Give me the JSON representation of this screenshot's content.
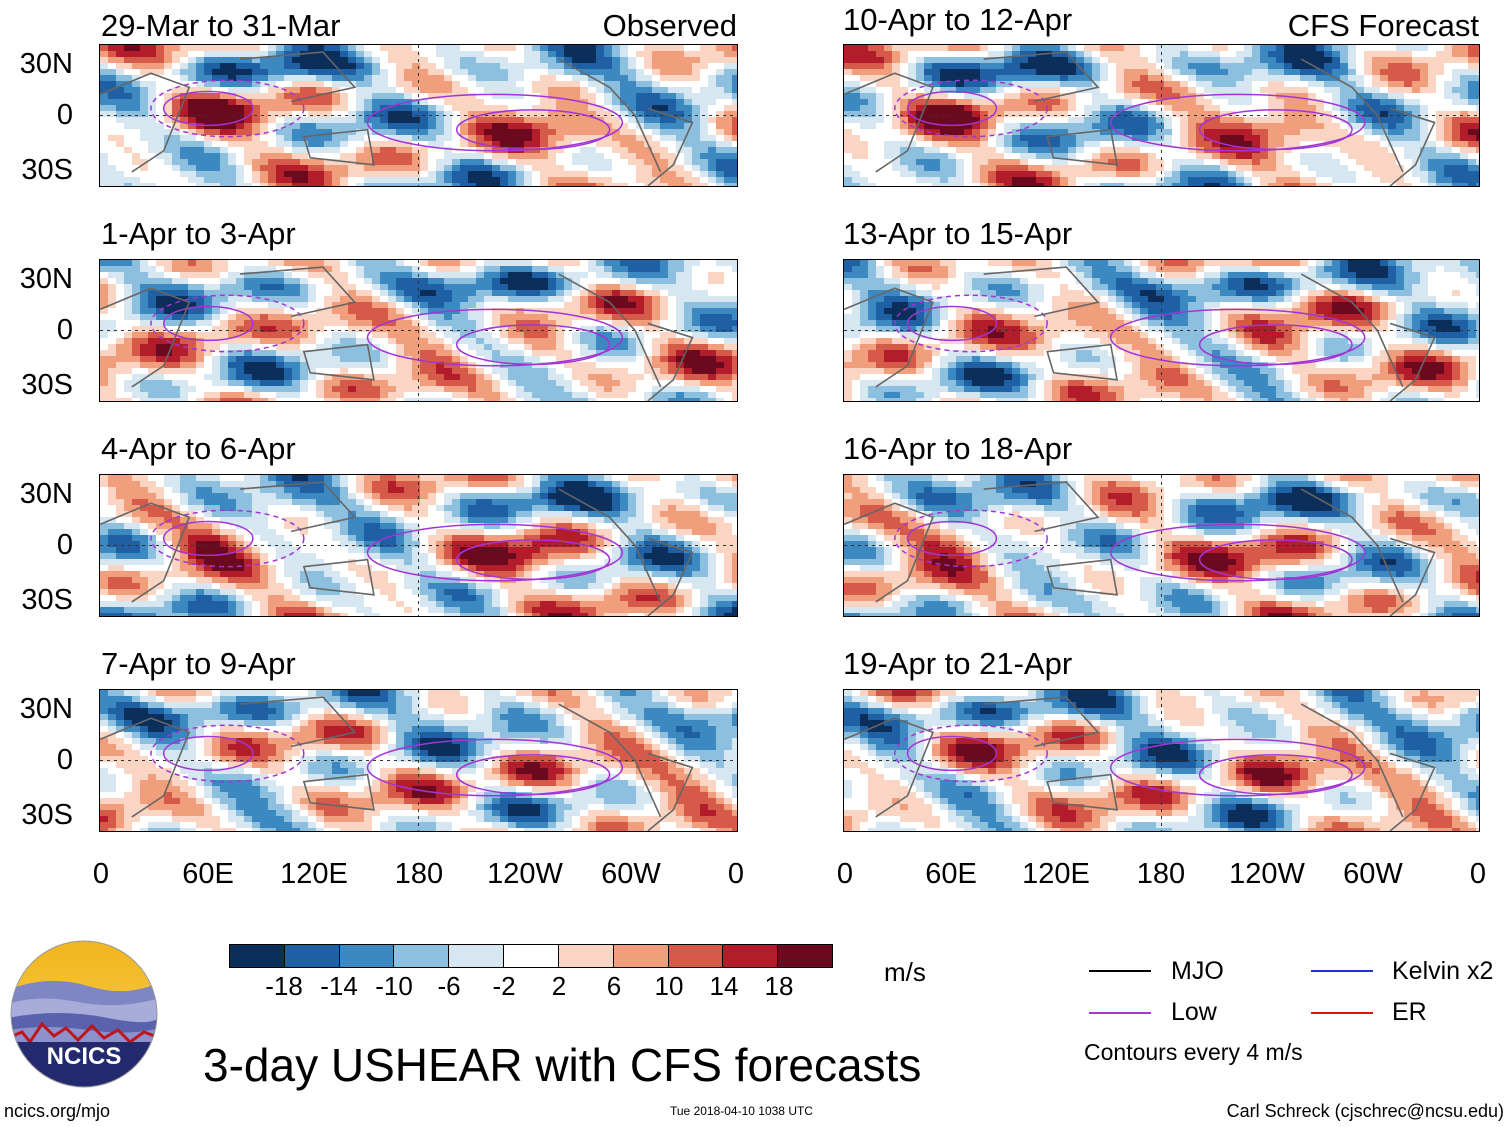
{
  "main_title": "3-day USHEAR with CFS forecasts",
  "observed_tag": "Observed",
  "forecast_tag": "CFS Forecast",
  "panels_left": [
    {
      "period": "29-Mar to 31-Mar"
    },
    {
      "period": "1-Apr to 3-Apr"
    },
    {
      "period": "4-Apr to 6-Apr"
    },
    {
      "period": "7-Apr to 9-Apr"
    }
  ],
  "panels_right": [
    {
      "period": "10-Apr to 12-Apr"
    },
    {
      "period": "13-Apr to 15-Apr"
    },
    {
      "period": "16-Apr to 18-Apr"
    },
    {
      "period": "19-Apr to 21-Apr"
    }
  ],
  "lat_labels": [
    "30N",
    "0",
    "30S"
  ],
  "lon_labels": [
    "0",
    "60E",
    "120E",
    "180",
    "120W",
    "60W",
    "0"
  ],
  "colorbar": {
    "units": "m/s",
    "tick_labels": [
      "-18",
      "-14",
      "-10",
      "-6",
      "-2",
      "2",
      "6",
      "10",
      "14",
      "18"
    ],
    "colors": [
      "#0b2e5a",
      "#1f5fa3",
      "#3c88c0",
      "#8dc0de",
      "#d6e7f2",
      "#ffffff",
      "#fad5c3",
      "#f09e7c",
      "#d65a4a",
      "#b31c2a",
      "#6b0a1e"
    ]
  },
  "legend": {
    "items": [
      {
        "label": "MJO",
        "color": "#000000"
      },
      {
        "label": "Kelvin x2",
        "color": "#2233cc"
      },
      {
        "label": "Low",
        "color": "#a235d6"
      },
      {
        "label": "ER",
        "color": "#dd1111"
      }
    ],
    "contour_note": "Contours every 4 m/s"
  },
  "logo_text": "NCICS",
  "footer": {
    "url": "ncics.org/mjo",
    "timestamp": "Tue 2018-04-10 1038 UTC",
    "credit": "Carl Schreck (cjschrec@ncsu.edu)"
  }
}
